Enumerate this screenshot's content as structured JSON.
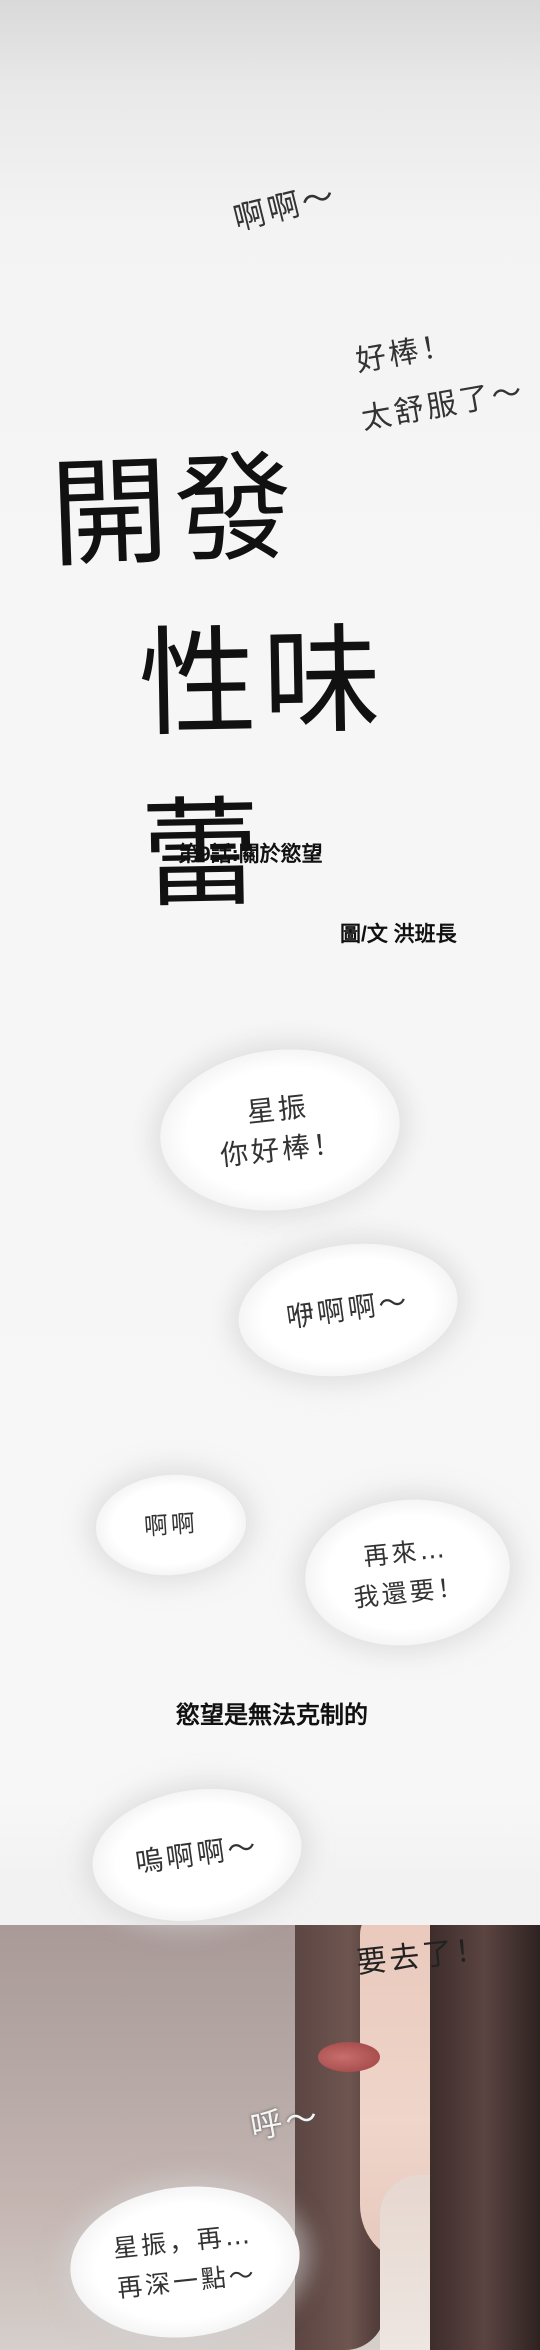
{
  "sfx": {
    "moan_top": "啊啊～",
    "good": "好棒！",
    "so_good": "太舒服了～",
    "go": "要去了！",
    "hoo": "呼～"
  },
  "title": {
    "line1": "開發",
    "line2": "性味蕾"
  },
  "episode": "第9話:關於慾望",
  "credits": "圖/文 洪班長",
  "bubbles": {
    "b1": "星振\n你好棒！",
    "b2": "咿啊啊～",
    "b3": "啊啊",
    "b4": "再來…\n我還要！",
    "b5": "嗚啊啊～",
    "b6": "星振，再…\n再深一點～"
  },
  "caption": "慾望是無法克制的"
}
